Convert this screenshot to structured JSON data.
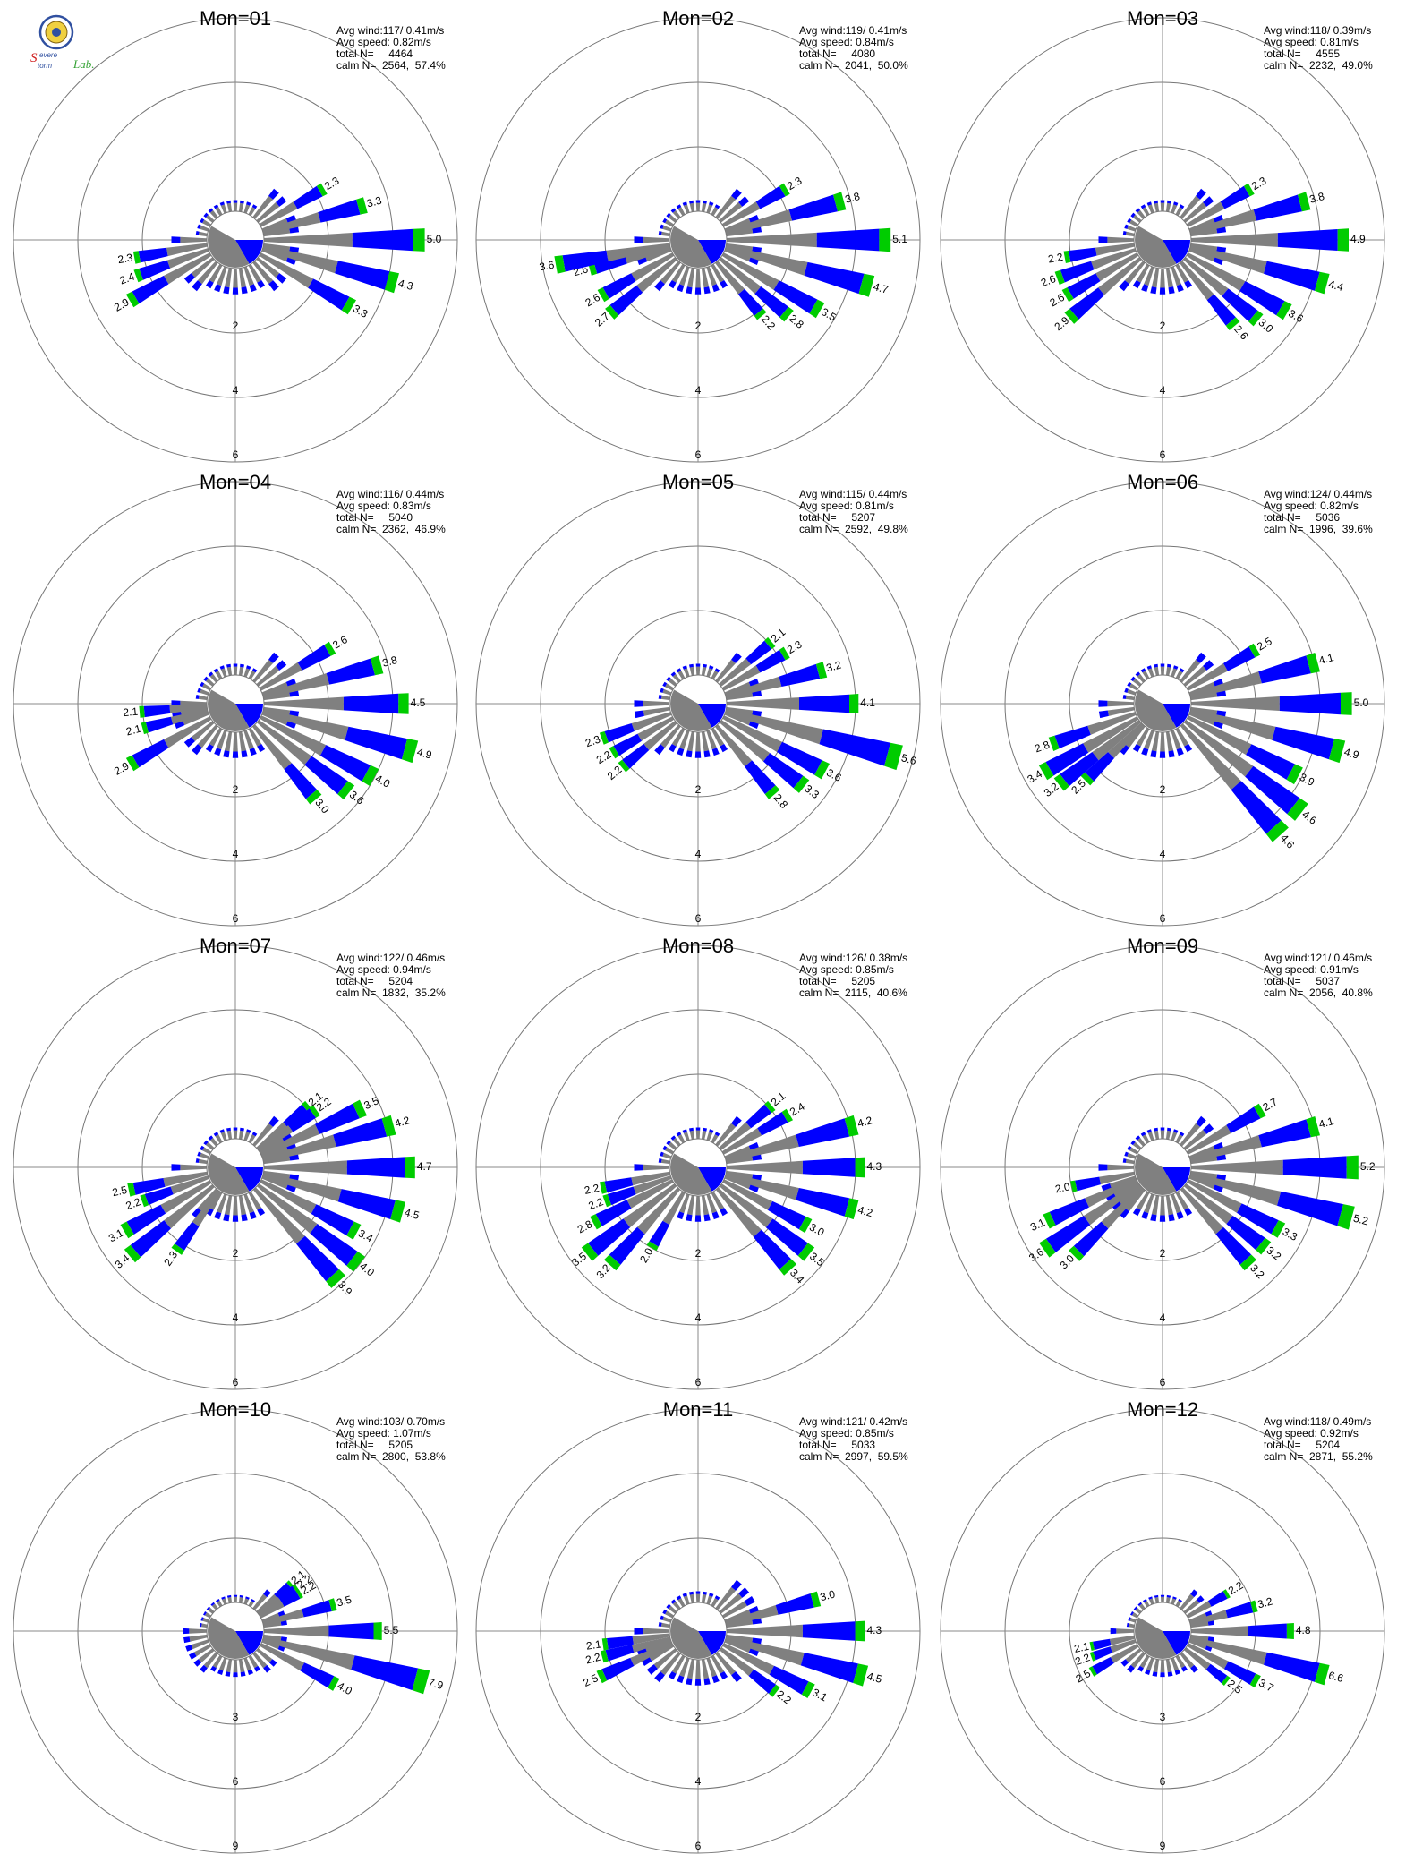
{
  "lab_logo": {
    "text": "Severe Storm Lab."
  },
  "colors": {
    "low": "#808080",
    "mid": "#0000ff",
    "high": "#00cc00"
  },
  "chart_data": [
    {
      "type": "polar-bar",
      "title": "Mon=01",
      "avg_wind": "Avg wind:117/ 0.41m/s",
      "avg_speed": "Avg speed: 0.82m/s",
      "total_label": "total N=",
      "total": "4464",
      "calm_label": "calm N=",
      "calm": "2564,  57.4%",
      "ring_labels": [
        "2",
        "4",
        "6"
      ],
      "rmax": 6,
      "bars": [
        {
          "dir": 60,
          "v": 2.3
        },
        {
          "dir": 75,
          "v": 3.3
        },
        {
          "dir": 90,
          "v": 5.0
        },
        {
          "dir": 105,
          "v": 4.3
        },
        {
          "dir": 120,
          "v": 3.3
        },
        {
          "dir": 240,
          "v": 2.9
        },
        {
          "dir": 250,
          "v": 2.4
        },
        {
          "dir": 260,
          "v": 2.3
        }
      ]
    },
    {
      "type": "polar-bar",
      "title": "Mon=02",
      "avg_wind": "Avg wind:119/ 0.41m/s",
      "avg_speed": "Avg speed: 0.84m/s",
      "total_label": "total N=",
      "total": "4080",
      "calm_label": "calm N=",
      "calm": "2041,  50.0%",
      "ring_labels": [
        "2",
        "4",
        "6"
      ],
      "rmax": 6,
      "bars": [
        {
          "dir": 60,
          "v": 2.3
        },
        {
          "dir": 75,
          "v": 3.8
        },
        {
          "dir": 90,
          "v": 5.1
        },
        {
          "dir": 105,
          "v": 4.7
        },
        {
          "dir": 120,
          "v": 3.5
        },
        {
          "dir": 130,
          "v": 2.8
        },
        {
          "dir": 140,
          "v": 2.2
        },
        {
          "dir": 230,
          "v": 2.7
        },
        {
          "dir": 240,
          "v": 2.6
        },
        {
          "dir": 255,
          "v": 2.6
        },
        {
          "dir": 260,
          "v": 3.6
        }
      ]
    },
    {
      "type": "polar-bar",
      "title": "Mon=03",
      "avg_wind": "Avg wind:118/ 0.39m/s",
      "avg_speed": "Avg speed: 0.81m/s",
      "total_label": "total N=",
      "total": "4555",
      "calm_label": "calm N=",
      "calm": "2232,  49.0%",
      "ring_labels": [
        "2",
        "4",
        "6"
      ],
      "rmax": 6,
      "bars": [
        {
          "dir": 60,
          "v": 2.3
        },
        {
          "dir": 75,
          "v": 3.8
        },
        {
          "dir": 90,
          "v": 4.9
        },
        {
          "dir": 105,
          "v": 4.4
        },
        {
          "dir": 120,
          "v": 3.6
        },
        {
          "dir": 130,
          "v": 3.0
        },
        {
          "dir": 140,
          "v": 2.6
        },
        {
          "dir": 230,
          "v": 2.9
        },
        {
          "dir": 240,
          "v": 2.6
        },
        {
          "dir": 250,
          "v": 2.6
        },
        {
          "dir": 260,
          "v": 2.2
        }
      ]
    },
    {
      "type": "polar-bar",
      "title": "Mon=04",
      "avg_wind": "Avg wind:116/ 0.44m/s",
      "avg_speed": "Avg speed: 0.83m/s",
      "total_label": "total N=",
      "total": "5040",
      "calm_label": "calm N=",
      "calm": "2362,  46.9%",
      "ring_labels": [
        "2",
        "4",
        "6"
      ],
      "rmax": 6,
      "bars": [
        {
          "dir": 60,
          "v": 2.6
        },
        {
          "dir": 75,
          "v": 3.8
        },
        {
          "dir": 90,
          "v": 4.5
        },
        {
          "dir": 105,
          "v": 4.9
        },
        {
          "dir": 118,
          "v": 4.0
        },
        {
          "dir": 128,
          "v": 3.6
        },
        {
          "dir": 140,
          "v": 3.0
        },
        {
          "dir": 240,
          "v": 2.9
        },
        {
          "dir": 255,
          "v": 2.1
        },
        {
          "dir": 265,
          "v": 2.1
        }
      ]
    },
    {
      "type": "polar-bar",
      "title": "Mon=05",
      "avg_wind": "Avg wind:115/ 0.44m/s",
      "avg_speed": "Avg speed: 0.81m/s",
      "total_label": "total N=",
      "total": "5207",
      "calm_label": "calm N=",
      "calm": "2592,  49.8%",
      "ring_labels": [
        "2",
        "4",
        "6"
      ],
      "rmax": 6,
      "bars": [
        {
          "dir": 50,
          "v": 2.1
        },
        {
          "dir": 60,
          "v": 2.3
        },
        {
          "dir": 75,
          "v": 3.2
        },
        {
          "dir": 90,
          "v": 4.1
        },
        {
          "dir": 105,
          "v": 5.6
        },
        {
          "dir": 118,
          "v": 3.6
        },
        {
          "dir": 128,
          "v": 3.3
        },
        {
          "dir": 140,
          "v": 2.8
        },
        {
          "dir": 230,
          "v": 2.2
        },
        {
          "dir": 240,
          "v": 2.2
        },
        {
          "dir": 250,
          "v": 2.3
        }
      ]
    },
    {
      "type": "polar-bar",
      "title": "Mon=06",
      "avg_wind": "Avg wind:124/ 0.44m/s",
      "avg_speed": "Avg speed: 0.82m/s",
      "total_label": "total N=",
      "total": "5036",
      "calm_label": "calm N=",
      "calm": "1996,  39.6%",
      "ring_labels": [
        "2",
        "4",
        "6"
      ],
      "rmax": 6,
      "bars": [
        {
          "dir": 60,
          "v": 2.5
        },
        {
          "dir": 75,
          "v": 4.1
        },
        {
          "dir": 90,
          "v": 5.0
        },
        {
          "dir": 105,
          "v": 4.9
        },
        {
          "dir": 118,
          "v": 3.9
        },
        {
          "dir": 128,
          "v": 4.6
        },
        {
          "dir": 138,
          "v": 4.6
        },
        {
          "dir": 225,
          "v": 2.5
        },
        {
          "dir": 232,
          "v": 3.2
        },
        {
          "dir": 240,
          "v": 3.4
        },
        {
          "dir": 250,
          "v": 2.8
        }
      ]
    },
    {
      "type": "polar-bar",
      "title": "Mon=07",
      "avg_wind": "Avg wind:122/ 0.46m/s",
      "avg_speed": "Avg speed: 0.94m/s",
      "total_label": "total N=",
      "total": "5204",
      "calm_label": "calm N=",
      "calm": "1832,  35.2%",
      "ring_labels": [
        "2",
        "4",
        "6"
      ],
      "rmax": 6,
      "bars": [
        {
          "dir": 50,
          "v": 2.1
        },
        {
          "dir": 55,
          "v": 2.2
        },
        {
          "dir": 65,
          "v": 3.5
        },
        {
          "dir": 75,
          "v": 4.2
        },
        {
          "dir": 90,
          "v": 4.7
        },
        {
          "dir": 105,
          "v": 4.5
        },
        {
          "dir": 118,
          "v": 3.4
        },
        {
          "dir": 128,
          "v": 4.0
        },
        {
          "dir": 138,
          "v": 3.9
        },
        {
          "dir": 215,
          "v": 2.3
        },
        {
          "dir": 230,
          "v": 3.4
        },
        {
          "dir": 240,
          "v": 3.1
        },
        {
          "dir": 250,
          "v": 2.2
        },
        {
          "dir": 258,
          "v": 2.5
        }
      ]
    },
    {
      "type": "polar-bar",
      "title": "Mon=08",
      "avg_wind": "Avg wind:126/ 0.38m/s",
      "avg_speed": "Avg speed: 0.85m/s",
      "total_label": "total N=",
      "total": "5205",
      "calm_label": "calm N=",
      "calm": "2115,  40.6%",
      "ring_labels": [
        "2",
        "4",
        "6"
      ],
      "rmax": 6,
      "bars": [
        {
          "dir": 50,
          "v": 2.1
        },
        {
          "dir": 60,
          "v": 2.4
        },
        {
          "dir": 75,
          "v": 4.2
        },
        {
          "dir": 90,
          "v": 4.3
        },
        {
          "dir": 105,
          "v": 4.2
        },
        {
          "dir": 118,
          "v": 3.0
        },
        {
          "dir": 128,
          "v": 3.5
        },
        {
          "dir": 138,
          "v": 3.4
        },
        {
          "dir": 210,
          "v": 2.0
        },
        {
          "dir": 222,
          "v": 3.2
        },
        {
          "dir": 232,
          "v": 3.5
        },
        {
          "dir": 242,
          "v": 2.8
        },
        {
          "dir": 250,
          "v": 2.2
        },
        {
          "dir": 258,
          "v": 2.2
        }
      ]
    },
    {
      "type": "polar-bar",
      "title": "Mon=09",
      "avg_wind": "Avg wind:121/ 0.46m/s",
      "avg_speed": "Avg speed: 0.91m/s",
      "total_label": "total N=",
      "total": "5037",
      "calm_label": "calm N=",
      "calm": "2056,  40.8%",
      "ring_labels": [
        "2",
        "4",
        "6"
      ],
      "rmax": 6,
      "bars": [
        {
          "dir": 60,
          "v": 2.7
        },
        {
          "dir": 75,
          "v": 4.1
        },
        {
          "dir": 90,
          "v": 5.2
        },
        {
          "dir": 105,
          "v": 5.2
        },
        {
          "dir": 118,
          "v": 3.3
        },
        {
          "dir": 128,
          "v": 3.2
        },
        {
          "dir": 138,
          "v": 3.2
        },
        {
          "dir": 225,
          "v": 3.0
        },
        {
          "dir": 235,
          "v": 3.6
        },
        {
          "dir": 245,
          "v": 3.1
        },
        {
          "dir": 258,
          "v": 2.0
        }
      ]
    },
    {
      "type": "polar-bar",
      "title": "Mon=10",
      "avg_wind": "Avg wind:103/ 0.70m/s",
      "avg_speed": "Avg speed: 1.07m/s",
      "total_label": "total N=",
      "total": "5205",
      "calm_label": "calm N=",
      "calm": "2800,  53.8%",
      "ring_labels": [
        "3",
        "6",
        "9"
      ],
      "rmax": 9,
      "bars": [
        {
          "dir": 50,
          "v": 2.1
        },
        {
          "dir": 55,
          "v": 2.2
        },
        {
          "dir": 60,
          "v": 2.2
        },
        {
          "dir": 75,
          "v": 3.5
        },
        {
          "dir": 90,
          "v": 5.5
        },
        {
          "dir": 105,
          "v": 7.9
        },
        {
          "dir": 118,
          "v": 4.0
        }
      ]
    },
    {
      "type": "polar-bar",
      "title": "Mon=11",
      "avg_wind": "Avg wind:121/ 0.42m/s",
      "avg_speed": "Avg speed: 0.85m/s",
      "total_label": "total N=",
      "total": "5033",
      "calm_label": "calm N=",
      "calm": "2997,  59.5%",
      "ring_labels": [
        "2",
        "4",
        "6"
      ],
      "rmax": 6,
      "bars": [
        {
          "dir": 75,
          "v": 3.0
        },
        {
          "dir": 90,
          "v": 4.3
        },
        {
          "dir": 105,
          "v": 4.5
        },
        {
          "dir": 118,
          "v": 3.1
        },
        {
          "dir": 128,
          "v": 2.2
        },
        {
          "dir": 245,
          "v": 2.5
        },
        {
          "dir": 255,
          "v": 2.2
        },
        {
          "dir": 262,
          "v": 2.1
        }
      ]
    },
    {
      "type": "polar-bar",
      "title": "Mon=12",
      "avg_wind": "Avg wind:118/ 0.49m/s",
      "avg_speed": "Avg speed: 0.92m/s",
      "total_label": "total N=",
      "total": "5204",
      "calm_label": "calm N=",
      "calm": "2871,  55.2%",
      "ring_labels": [
        "3",
        "6",
        "9"
      ],
      "rmax": 9,
      "bars": [
        {
          "dir": 60,
          "v": 2.2
        },
        {
          "dir": 75,
          "v": 3.2
        },
        {
          "dir": 90,
          "v": 4.8
        },
        {
          "dir": 105,
          "v": 6.6
        },
        {
          "dir": 118,
          "v": 3.7
        },
        {
          "dir": 128,
          "v": 2.5
        },
        {
          "dir": 240,
          "v": 2.5
        },
        {
          "dir": 250,
          "v": 2.2
        },
        {
          "dir": 258,
          "v": 2.1
        }
      ]
    }
  ]
}
